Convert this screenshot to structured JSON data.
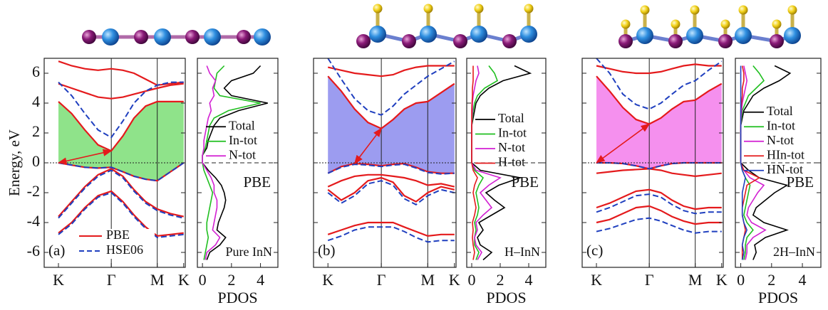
{
  "chart_data": [
    {
      "type": "band",
      "ylabel": "Energy, eV",
      "panel_label": "(a)",
      "x": [
        0,
        0.25,
        0.5,
        0.75,
        1,
        1.22,
        1.43,
        1.65,
        1.87,
        2.12,
        2.37
      ],
      "xlim": [
        -0.27,
        2.4
      ],
      "xticks": [
        {
          "value": 0,
          "label": "K"
        },
        {
          "value": 1,
          "label": "Γ"
        },
        {
          "value": 1.87,
          "label": "M"
        },
        {
          "value": 2.37,
          "label": "K"
        }
      ],
      "ylim": [
        -7,
        7
      ],
      "yticks": [
        -6,
        -4,
        -2,
        0,
        2,
        4,
        6
      ],
      "fermi_level": 0,
      "fill": {
        "color": "#8fe38a",
        "between": [
          [
            0,
            0
          ],
          [
            0,
            3
          ]
        ]
      },
      "legend": "lower center",
      "series": [
        {
          "name": "PBE",
          "color": "#e41a1c",
          "style": "solid",
          "bands": [
            [
              0,
              -0.15,
              -0.3,
              -0.35,
              -0.3,
              -0.6,
              -0.9,
              -1.1,
              -1.2,
              -0.6,
              0
            ],
            [
              -3.6,
              -2.6,
              -1.6,
              -0.8,
              -0.4,
              -0.9,
              -1.8,
              -2.6,
              -3.1,
              -3.4,
              -3.6
            ],
            [
              -4.7,
              -4.0,
              -3.0,
              -2.2,
              -1.9,
              -2.6,
              -3.5,
              -4.3,
              -4.9,
              -4.8,
              -4.7
            ],
            [
              4.1,
              3.3,
              2.2,
              1.2,
              0.8,
              1.8,
              3.0,
              3.8,
              4.1,
              4.1,
              4.1
            ],
            [
              5.3,
              5.0,
              4.7,
              4.4,
              4.3,
              4.4,
              4.6,
              4.8,
              5.0,
              5.2,
              5.3
            ],
            [
              6.8,
              6.5,
              6.3,
              6.2,
              6.3,
              6.2,
              6.0,
              5.6,
              5.2,
              5.3,
              5.4
            ]
          ]
        },
        {
          "name": "HSE06",
          "color": "#1f3fbf",
          "style": "dashed",
          "bands": [
            [
              0,
              -0.15,
              -0.3,
              -0.35,
              -0.3,
              -0.6,
              -0.9,
              -1.1,
              -1.2,
              -0.6,
              0
            ],
            [
              -3.7,
              -2.7,
              -1.7,
              -0.9,
              -0.5,
              -1.0,
              -1.9,
              -2.7,
              -3.2,
              -3.5,
              -3.7
            ],
            [
              -4.8,
              -4.1,
              -3.1,
              -2.3,
              -2.0,
              -2.7,
              -3.6,
              -4.4,
              -5.0,
              -4.9,
              -4.8
            ],
            [
              5.4,
              4.5,
              3.3,
              2.2,
              1.7,
              2.8,
              4.0,
              4.8,
              5.2,
              5.4,
              5.4
            ]
          ]
        }
      ]
    },
    {
      "type": "pdos",
      "xlabel": "PDOS",
      "annotations": [
        "PBE",
        "Pure InN"
      ],
      "energies": [
        -6.5,
        -6,
        -5.5,
        -5,
        -4.5,
        -4,
        -3.5,
        -3,
        -2.5,
        -2,
        -1.5,
        -1,
        -0.5,
        0,
        0.5,
        1,
        1.5,
        2,
        2.5,
        3,
        3.5,
        4,
        4.5,
        5,
        5.5,
        6,
        6.5
      ],
      "xlim": [
        -0.35,
        5.2
      ],
      "xticks": [
        0,
        2,
        4
      ],
      "ylim": [
        -7,
        7
      ],
      "fermi_level": 0,
      "legend": "center right",
      "series": [
        {
          "name": "Total",
          "color": "#000000",
          "values": [
            0.3,
            0.5,
            1.2,
            1.6,
            1.0,
            1.1,
            1.3,
            1.5,
            1.6,
            1.5,
            1.3,
            0.9,
            0.4,
            0,
            0,
            0.3,
            0.4,
            0.6,
            0.8,
            1.2,
            2.5,
            4.5,
            2.0,
            1.5,
            2.0,
            3.5,
            4.0
          ]
        },
        {
          "name": "In-tot",
          "color": "#1fbf1f",
          "values": [
            0.1,
            0.2,
            0.3,
            0.4,
            0.3,
            0.3,
            0.4,
            0.5,
            0.6,
            0.7,
            0.5,
            0.3,
            0.1,
            0,
            0,
            0.2,
            0.3,
            0.4,
            0.5,
            0.8,
            1.8,
            4.0,
            1.2,
            0.8,
            0.9,
            1.0,
            1.5
          ]
        },
        {
          "name": "N-tot",
          "color": "#d21fd2",
          "values": [
            0.2,
            0.3,
            0.9,
            1.2,
            0.7,
            0.8,
            0.9,
            1.0,
            1.0,
            0.8,
            0.8,
            0.6,
            0.3,
            0,
            0,
            0.1,
            0.1,
            0.2,
            0.3,
            0.4,
            0.6,
            0.5,
            0.8,
            0.7,
            0.9,
            0.5,
            0.3
          ]
        }
      ]
    },
    {
      "type": "band",
      "panel_label": "(b)",
      "x": [
        0,
        0.25,
        0.5,
        0.75,
        1,
        1.22,
        1.43,
        1.65,
        1.87,
        2.12,
        2.37
      ],
      "xlim": [
        -0.27,
        2.4
      ],
      "xticks": [
        {
          "value": 0,
          "label": "K"
        },
        {
          "value": 1,
          "label": "Γ"
        },
        {
          "value": 1.87,
          "label": "M"
        },
        {
          "value": 2.37,
          "label": "K"
        }
      ],
      "ylim": [
        -7,
        7
      ],
      "fermi_level": 0,
      "fill": {
        "color": "#9c9cf0",
        "between": [
          [
            0,
            0
          ],
          [
            0,
            4
          ]
        ]
      },
      "series": [
        {
          "color": "#e41a1c",
          "style": "solid",
          "bands": [
            [
              -0.7,
              -0.25,
              -0.05,
              -0.1,
              -0.2,
              -0.1,
              -0.05,
              -0.3,
              -0.6,
              -0.7,
              -0.7
            ],
            [
              -1.6,
              -1.2,
              -0.9,
              -0.8,
              -0.8,
              -0.9,
              -1.0,
              -1.2,
              -1.5,
              -1.4,
              -1.6
            ],
            [
              -1.8,
              -2.5,
              -2.0,
              -1.2,
              -1.0,
              -1.3,
              -2.2,
              -2.6,
              -2.0,
              -1.6,
              -1.8
            ],
            [
              -4.8,
              -4.5,
              -4.2,
              -4.0,
              -4.0,
              -4.0,
              -4.3,
              -4.6,
              -4.9,
              -4.8,
              -4.8
            ],
            [
              5.8,
              4.8,
              3.6,
              2.7,
              2.3,
              2.9,
              3.6,
              4.0,
              4.1,
              4.7,
              5.3
            ],
            [
              6.4,
              6.2,
              6.0,
              5.9,
              5.8,
              5.9,
              6.2,
              6.4,
              6.5,
              6.5,
              6.5
            ]
          ]
        },
        {
          "color": "#1f3fbf",
          "style": "dashed",
          "bands": [
            [
              -0.7,
              -0.3,
              -0.1,
              -0.15,
              -0.25,
              -0.15,
              -0.1,
              -0.35,
              -0.65,
              -0.75,
              -0.7
            ],
            [
              -2.0,
              -2.7,
              -2.2,
              -1.4,
              -1.2,
              -1.5,
              -2.4,
              -2.8,
              -2.2,
              -1.8,
              -2.0
            ],
            [
              -5.2,
              -4.9,
              -4.5,
              -4.3,
              -4.3,
              -4.3,
              -4.6,
              -5.0,
              -5.3,
              -5.2,
              -5.2
            ],
            [
              7.0,
              5.6,
              4.3,
              3.5,
              3.2,
              3.8,
              4.6,
              5.2,
              5.8,
              6.3,
              6.8
            ]
          ]
        }
      ]
    },
    {
      "type": "pdos",
      "xlabel": "PDOS",
      "annotations": [
        "PBE",
        "H–InN"
      ],
      "energies": [
        -6.5,
        -6,
        -5.5,
        -5,
        -4.5,
        -4,
        -3.5,
        -3,
        -2.5,
        -2,
        -1.5,
        -1,
        -0.5,
        0,
        0.5,
        1,
        1.5,
        2,
        2.5,
        3,
        3.5,
        4,
        4.5,
        5,
        5.5,
        6,
        6.5
      ],
      "xlim": [
        -0.35,
        5.2
      ],
      "xticks": [
        0,
        2,
        4
      ],
      "ylim": [
        -7,
        7
      ],
      "fermi_level": 0,
      "legend": "center right",
      "series": [
        {
          "name": "Total",
          "color": "#000000",
          "values": [
            0.8,
            1.4,
            0.6,
            0.4,
            0.8,
            0.5,
            1.4,
            2.3,
            1.6,
            1.0,
            1.9,
            3.4,
            0.6,
            0,
            0,
            0,
            0,
            0,
            0,
            0.1,
            0.2,
            0.3,
            0.6,
            1.2,
            2.2,
            4.1,
            3.0
          ]
        },
        {
          "name": "In-tot",
          "color": "#1fbf1f",
          "values": [
            0.3,
            0.5,
            0.2,
            0.2,
            0.3,
            0.2,
            0.4,
            0.5,
            0.4,
            0.3,
            0.5,
            0.8,
            0.2,
            0,
            0,
            0,
            0,
            0,
            0,
            0.05,
            0.1,
            0.2,
            0.4,
            0.9,
            1.8,
            1.6,
            1.2
          ]
        },
        {
          "name": "N-tot",
          "color": "#d21fd2",
          "values": [
            0.4,
            0.7,
            0.3,
            0.2,
            0.4,
            0.3,
            0.8,
            1.4,
            1.0,
            0.6,
            1.2,
            2.0,
            0.3,
            0,
            0,
            0,
            0,
            0,
            0,
            0.02,
            0.05,
            0.05,
            0.1,
            0.2,
            0.3,
            0.5,
            0.4
          ]
        },
        {
          "name": "H-tot",
          "color": "#e41a1c",
          "values": [
            0.1,
            0.2,
            0.1,
            0.05,
            0.1,
            0.05,
            0.2,
            0.3,
            0.2,
            0.1,
            0.2,
            0.4,
            0.1,
            0,
            0,
            0,
            0,
            0,
            0,
            0,
            0,
            0.02,
            0.05,
            0.05,
            0.1,
            0.1,
            0.1
          ]
        }
      ]
    },
    {
      "type": "band",
      "panel_label": "(c)",
      "x": [
        0,
        0.25,
        0.5,
        0.75,
        1,
        1.22,
        1.43,
        1.65,
        1.87,
        2.12,
        2.37
      ],
      "xlim": [
        -0.27,
        2.4
      ],
      "xticks": [
        {
          "value": 0,
          "label": "K"
        },
        {
          "value": 1,
          "label": "Γ"
        },
        {
          "value": 1.87,
          "label": "M"
        },
        {
          "value": 2.37,
          "label": "K"
        }
      ],
      "ylim": [
        -7,
        7
      ],
      "fermi_level": 0,
      "fill": {
        "color": "#f590ee",
        "between": [
          [
            0,
            0
          ],
          [
            0,
            4
          ]
        ]
      },
      "series": [
        {
          "color": "#e41a1c",
          "style": "solid",
          "bands": [
            [
              0,
              0,
              -0.05,
              -0.2,
              -0.4,
              -0.2,
              -0.05,
              0,
              0,
              0,
              0
            ],
            [
              -0.7,
              -0.6,
              -0.5,
              -0.45,
              -0.4,
              -0.5,
              -0.7,
              -0.8,
              -0.9,
              -0.8,
              -0.7
            ],
            [
              -3.0,
              -2.7,
              -2.3,
              -1.9,
              -1.8,
              -2.0,
              -2.5,
              -2.9,
              -3.1,
              -3.0,
              -3.0
            ],
            [
              -4.0,
              -3.8,
              -3.4,
              -3.0,
              -2.9,
              -3.2,
              -3.6,
              -3.9,
              -4.1,
              -4.0,
              -4.0
            ],
            [
              5.8,
              4.8,
              3.7,
              2.9,
              2.6,
              3.0,
              3.6,
              4.1,
              4.2,
              4.8,
              5.3
            ],
            [
              6.5,
              6.3,
              6.1,
              6.0,
              6.0,
              6.1,
              6.3,
              6.5,
              6.6,
              6.5,
              6.5
            ]
          ]
        },
        {
          "color": "#1f3fbf",
          "style": "dashed",
          "bands": [
            [
              0,
              0,
              -0.05,
              -0.2,
              -0.4,
              -0.2,
              -0.05,
              0,
              0,
              0,
              0
            ],
            [
              -3.3,
              -3.0,
              -2.6,
              -2.2,
              -2.1,
              -2.3,
              -2.8,
              -3.2,
              -3.4,
              -3.3,
              -3.3
            ],
            [
              -4.6,
              -4.4,
              -4.1,
              -3.8,
              -3.7,
              -3.9,
              -4.2,
              -4.5,
              -4.7,
              -4.6,
              -4.6
            ],
            [
              7.0,
              6.0,
              4.6,
              3.9,
              3.6,
              4.0,
              4.6,
              5.2,
              5.5,
              6.2,
              6.8
            ]
          ]
        }
      ]
    },
    {
      "type": "pdos",
      "xlabel": "PDOS",
      "annotations": [
        "PBE",
        "2H–InN"
      ],
      "energies": [
        -6.5,
        -6,
        -5.5,
        -5,
        -4.5,
        -4,
        -3.5,
        -3,
        -2.5,
        -2,
        -1.5,
        -1,
        -0.5,
        0,
        0.5,
        1,
        1.5,
        2,
        2.5,
        3,
        3.5,
        4,
        4.5,
        5,
        5.5,
        6,
        6.5
      ],
      "xlim": [
        -0.35,
        5.2
      ],
      "xticks": [
        0,
        2,
        4
      ],
      "ylim": [
        -7,
        7
      ],
      "fermi_level": 0,
      "legend": "center right",
      "series": [
        {
          "name": "Total",
          "color": "#000000",
          "values": [
            0.8,
            1.0,
            0.9,
            1.6,
            3.0,
            1.5,
            0.8,
            1.0,
            1.6,
            2.2,
            3.0,
            1.2,
            0.5,
            0,
            0,
            0,
            0,
            0,
            0,
            0.1,
            0.2,
            0.5,
            0.8,
            1.5,
            2.5,
            3.2,
            2.2
          ]
        },
        {
          "name": "In-tot",
          "color": "#1fbf1f",
          "values": [
            0.2,
            0.3,
            0.3,
            0.4,
            0.8,
            0.4,
            0.2,
            0.3,
            0.4,
            0.5,
            0.6,
            0.3,
            0.1,
            0,
            0,
            0,
            0,
            0,
            0,
            0.05,
            0.1,
            0.3,
            0.5,
            1.0,
            1.5,
            1.2,
            0.8
          ]
        },
        {
          "name": "N-tot",
          "color": "#d21fd2",
          "values": [
            0.3,
            0.4,
            0.4,
            0.8,
            1.6,
            0.7,
            0.4,
            0.5,
            0.8,
            1.1,
            1.5,
            0.6,
            0.2,
            0,
            0,
            0,
            0,
            0,
            0,
            0.02,
            0.05,
            0.1,
            0.2,
            0.3,
            0.4,
            0.3,
            0.2
          ]
        },
        {
          "name": "HIn-tot",
          "color": "#e41a1c",
          "values": [
            0.1,
            0.1,
            0.1,
            0.2,
            0.3,
            0.2,
            0.1,
            0.1,
            0.2,
            0.3,
            0.4,
            1.2,
            0.2,
            0,
            0,
            0,
            0,
            0,
            0,
            0,
            0,
            0.05,
            0.1,
            0.1,
            0.2,
            0.2,
            0.1
          ]
        },
        {
          "name": "HN-tot",
          "color": "#1f3fbf",
          "values": [
            0.1,
            0.2,
            0.1,
            0.2,
            0.4,
            0.2,
            0.1,
            0.1,
            0.1,
            0.1,
            0.2,
            0.3,
            0.1,
            0,
            0,
            0,
            0,
            0,
            0,
            0,
            0,
            0,
            0,
            0,
            0,
            0,
            0
          ]
        }
      ]
    }
  ]
}
